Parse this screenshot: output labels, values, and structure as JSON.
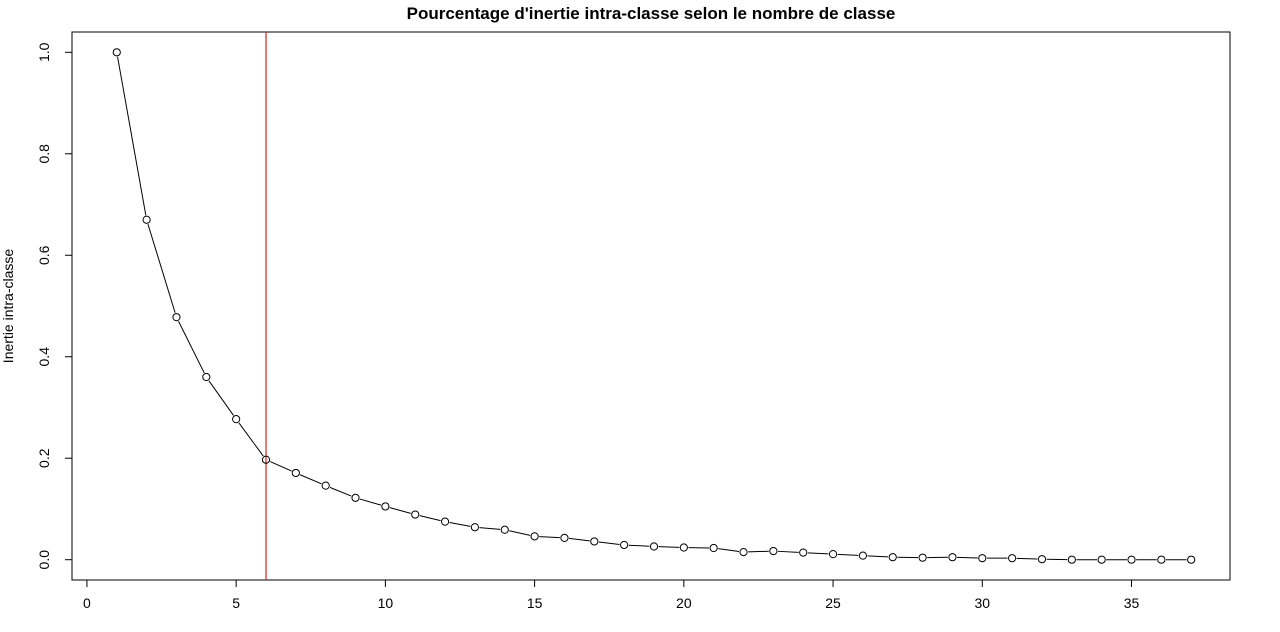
{
  "chart_data": {
    "type": "line",
    "title": "Pourcentage d'inertie intra-classe selon le nombre de classe",
    "xlabel": "",
    "ylabel": "Inertie intra-classe",
    "xlim": [
      -0.5,
      38.3
    ],
    "ylim": [
      -0.04,
      1.04
    ],
    "xticks": [
      0,
      5,
      10,
      15,
      20,
      25,
      30,
      35
    ],
    "yticks": [
      0.0,
      0.2,
      0.4,
      0.6,
      0.8,
      1.0
    ],
    "xtick_labels": [
      "0",
      "5",
      "10",
      "15",
      "20",
      "25",
      "30",
      "35"
    ],
    "ytick_labels": [
      "0.0",
      "0.2",
      "0.4",
      "0.6",
      "0.8",
      "1.0"
    ],
    "grid": false,
    "series": [
      {
        "color": "#000000",
        "marker": "open-circle",
        "x": [
          1,
          2,
          3,
          4,
          5,
          6,
          7,
          8,
          9,
          10,
          11,
          12,
          13,
          14,
          15,
          16,
          17,
          18,
          19,
          20,
          21,
          22,
          23,
          24,
          25,
          26,
          27,
          28,
          29,
          30,
          31,
          32,
          33,
          34,
          35,
          36,
          37
        ],
        "y": [
          1.0,
          0.67,
          0.478,
          0.36,
          0.277,
          0.197,
          0.171,
          0.146,
          0.122,
          0.105,
          0.089,
          0.075,
          0.064,
          0.059,
          0.046,
          0.043,
          0.036,
          0.029,
          0.026,
          0.024,
          0.023,
          0.015,
          0.017,
          0.014,
          0.011,
          0.008,
          0.005,
          0.004,
          0.005,
          0.003,
          0.003,
          0.001,
          0.0,
          0.0,
          0.0,
          0.0,
          0.0
        ]
      }
    ],
    "vline": {
      "x": 6,
      "color": "#e0201b"
    }
  }
}
